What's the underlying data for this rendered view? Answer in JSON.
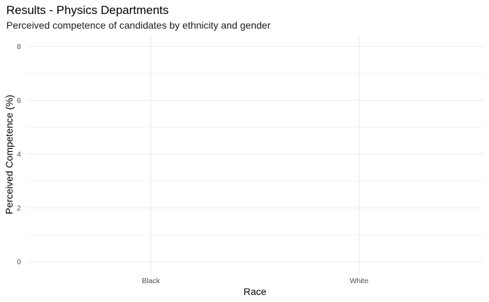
{
  "chart_data": {
    "type": "bar",
    "title": "Results - Physics Departments",
    "subtitle": "Perceived competence of candidates by ethnicity and gender",
    "xlabel": "Race",
    "ylabel": "Perceived Competence (%)",
    "categories": [
      "Black",
      "White"
    ],
    "series": [],
    "ylim": [
      0,
      8.4
    ],
    "yticks": [
      0,
      2,
      4,
      6,
      8
    ],
    "ytick_labels": [
      "0",
      "2",
      "4",
      "6",
      "8"
    ],
    "grid": true,
    "legend": "none",
    "colors": {
      "grid_major": "#ebebeb",
      "grid_minor": "#f3f3f3",
      "tick_text": "#4d4d4d",
      "text": "#000000"
    }
  }
}
